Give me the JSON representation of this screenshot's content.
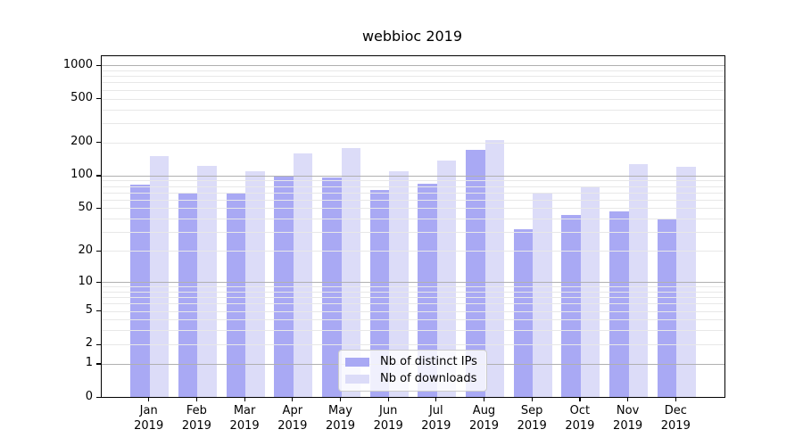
{
  "chart_data": {
    "type": "bar",
    "title": "webbioc 2019",
    "categories": [
      "Jan",
      "Feb",
      "Mar",
      "Apr",
      "May",
      "Jun",
      "Jul",
      "Aug",
      "Sep",
      "Oct",
      "Nov",
      "Dec"
    ],
    "year": "2019",
    "series": [
      {
        "name": "Nb of distinct IPs",
        "color": "#a9a9f4",
        "values": [
          83,
          70,
          68,
          98,
          95,
          74,
          84,
          171,
          32,
          43,
          47,
          40
        ]
      },
      {
        "name": "Nb of downloads",
        "color": "#dcdcf8",
        "values": [
          150,
          122,
          109,
          159,
          177,
          109,
          138,
          210,
          69,
          80,
          126,
          120
        ]
      }
    ],
    "yscale": "log1p",
    "yticks": [
      0,
      1,
      2,
      5,
      10,
      20,
      50,
      100,
      200,
      500,
      1000
    ],
    "ylim": [
      0,
      1210
    ],
    "grid": "on",
    "legend_position": "lower center"
  }
}
